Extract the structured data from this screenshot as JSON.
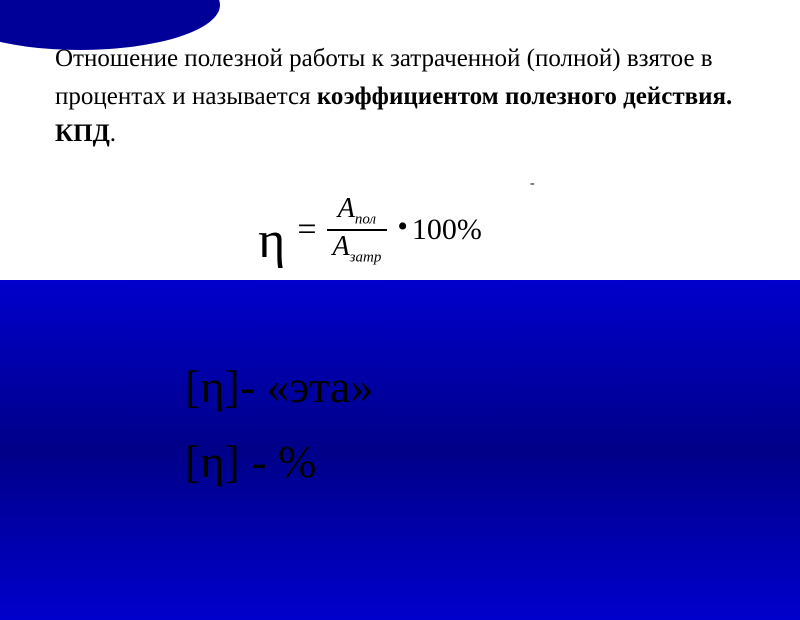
{
  "text": {
    "p1": "Отношение полезной работы к затраченной (полной) взятое в процентах и называется ",
    "bold": "коэффициентом полезного действия. КПД",
    "period": "."
  },
  "formula": {
    "eta": "η",
    "equals": "=",
    "num_var": "A",
    "num_sub": "пол",
    "den_var": "A",
    "den_sub": "затр",
    "dot": "•",
    "hundred": "100%",
    "tick": "-"
  },
  "lines": {
    "l1": "[η]- «эта»",
    "l2": "[η] - %"
  },
  "colors": {
    "blue_dark": "#000099",
    "blue_grad1": "#0000cc",
    "blue_grad2": "#000088",
    "black": "#000000",
    "white": "#ffffff"
  },
  "fonts": {
    "body": 25,
    "eta_formula": 52,
    "fraction": 28,
    "lines": 46
  }
}
